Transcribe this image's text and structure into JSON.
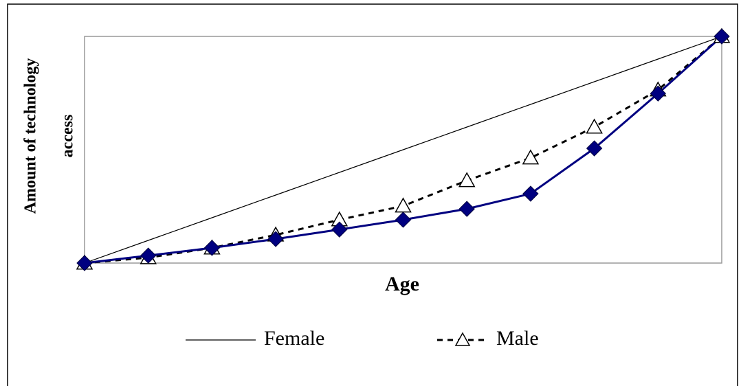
{
  "chart_data": {
    "type": "line",
    "xlabel": "Age",
    "ylabel": [
      "Amount of technology",
      "access"
    ],
    "categories": [
      null,
      null,
      null,
      null,
      null,
      null,
      null,
      null,
      null,
      null,
      null
    ],
    "ylim": [
      0,
      100
    ],
    "series": [
      {
        "name": "Female",
        "color": "#000000",
        "style": "solid-thin",
        "values": [
          0,
          10,
          20,
          30,
          40,
          50,
          60,
          70,
          80,
          90,
          100
        ]
      },
      {
        "name": "Male",
        "color": "#000000",
        "style": "dashed-triangle",
        "values": [
          0,
          2.4,
          6.7,
          12.4,
          19.1,
          25.2,
          36.4,
          46.4,
          60,
          76.4,
          100
        ]
      },
      {
        "color": "#000080",
        "style": "solid-diamond",
        "values": [
          0,
          3.3,
          6.7,
          10.6,
          14.8,
          19.1,
          23.9,
          30.6,
          50.6,
          74.8,
          100
        ]
      }
    ]
  }
}
